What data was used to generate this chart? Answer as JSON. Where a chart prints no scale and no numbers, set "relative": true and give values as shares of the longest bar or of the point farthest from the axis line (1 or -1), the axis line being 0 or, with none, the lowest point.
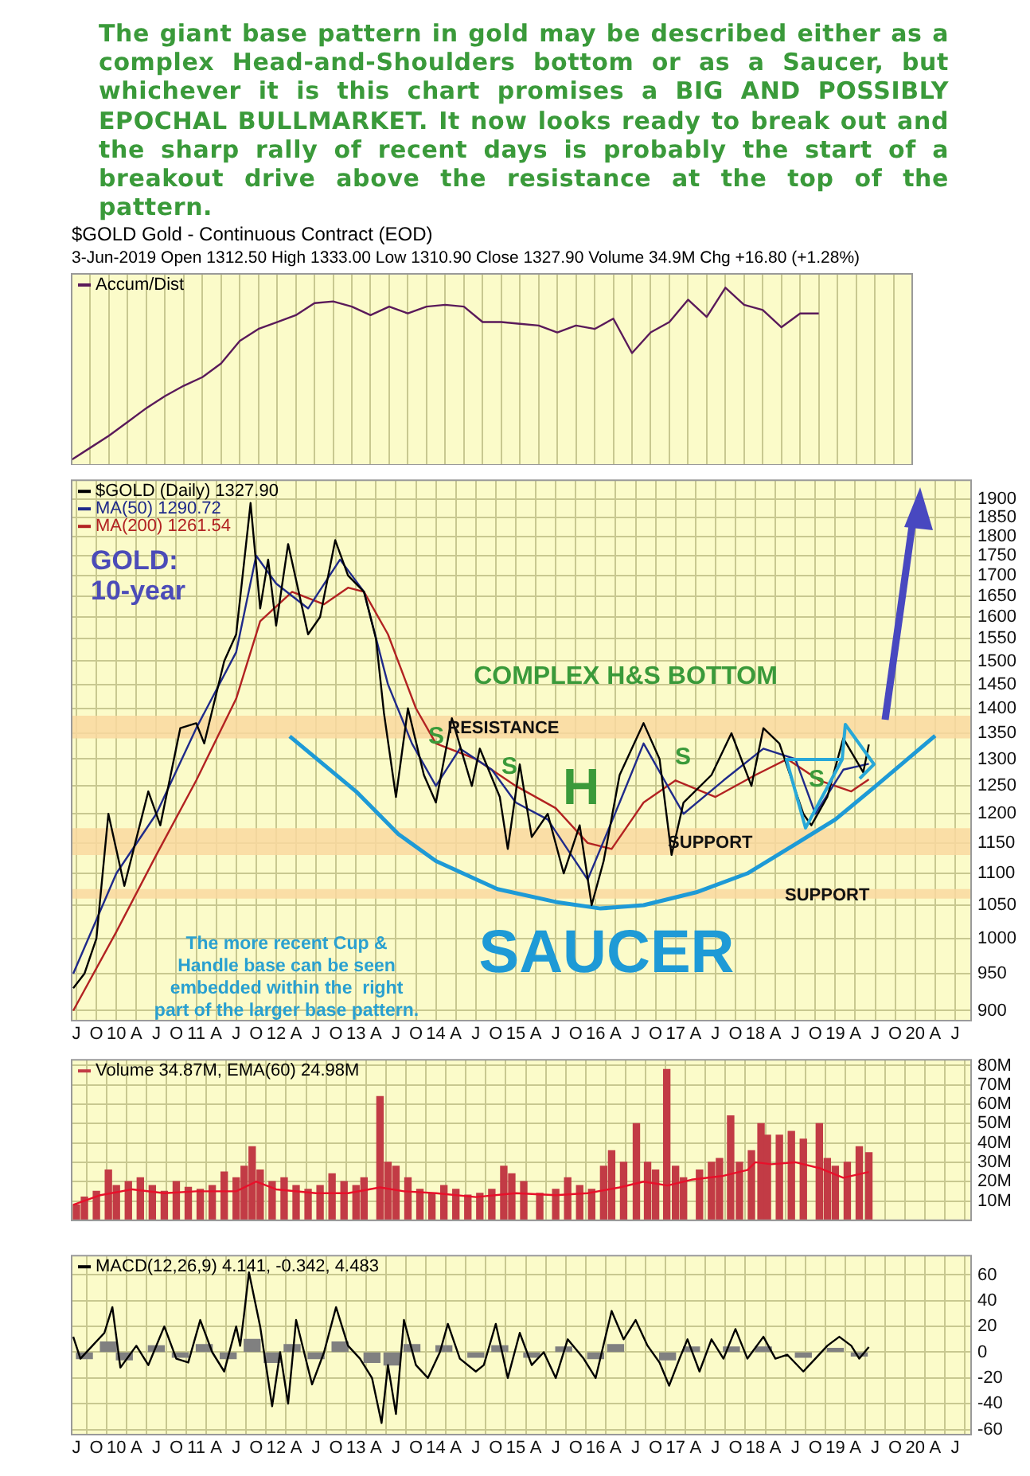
{
  "chart_data": [
    {
      "type": "line",
      "title": "The giant base pattern in gold may be described either as a complex Head-and-Shoulders bottom or as a Saucer, but whichever it is this chart promises a BIG AND POSSIBLY EPOCHAL BULLMARKET. It now looks ready to break out and the sharp rally of recent days is probably the start of a breakout drive above the resistance at the top of the pattern.",
      "subtitle": "$GOLD Gold - Continuous Contract (EOD)",
      "annotations": [
        "3-Jun-2019 Open 1312.50 High 1333.00 Low 1310.90 Close 1327.90 Volume 34.9M Chg +16.80 (+1.28%)"
      ],
      "relative": true,
      "categories": [
        null,
        null,
        null,
        null,
        null,
        null,
        null,
        null,
        null,
        null,
        null,
        null,
        null,
        null,
        null,
        null,
        null,
        null,
        null,
        null,
        null,
        null,
        null,
        null,
        null,
        null,
        null,
        null,
        null,
        null,
        null,
        null,
        null,
        null,
        null,
        null,
        null,
        null,
        null,
        null,
        null,
        null,
        null,
        null,
        null,
        null
      ],
      "tick_labels": false,
      "grid": "x",
      "legend": "top left",
      "series": [
        {
          "name": "Accum/Dist",
          "color": "#5a1a5a",
          "values": [
            0,
            0.07,
            0.14,
            0.22,
            0.3,
            0.37,
            0.43,
            0.48,
            0.56,
            0.69,
            0.76,
            0.8,
            0.84,
            0.91,
            0.92,
            0.89,
            0.84,
            0.89,
            0.85,
            0.89,
            0.9,
            0.89,
            0.8,
            0.8,
            0.79,
            0.78,
            0.74,
            0.78,
            0.76,
            0.82,
            0.62,
            0.74,
            0.8,
            0.93,
            0.83,
            1,
            0.9,
            0.87,
            0.77,
            0.85,
            0.85,
            null,
            null,
            null,
            null,
            null
          ]
        }
      ]
    },
    {
      "type": "line",
      "log": true,
      "xlim": [
        2009.44,
        2020.7
      ],
      "xticks": [
        {
          "value": 2009.5,
          "label": "J"
        },
        {
          "value": 2009.75,
          "label": "O"
        },
        {
          "value": 2010,
          "label": "10"
        },
        {
          "value": 2010.25,
          "label": "A"
        },
        {
          "value": 2010.5,
          "label": "J"
        },
        {
          "value": 2010.75,
          "label": "O"
        },
        {
          "value": 2011,
          "label": "11"
        },
        {
          "value": 2011.25,
          "label": "A"
        },
        {
          "value": 2011.5,
          "label": "J"
        },
        {
          "value": 2011.75,
          "label": "O"
        },
        {
          "value": 2012,
          "label": "12"
        },
        {
          "value": 2012.25,
          "label": "A"
        },
        {
          "value": 2012.5,
          "label": "J"
        },
        {
          "value": 2012.75,
          "label": "O"
        },
        {
          "value": 2013,
          "label": "13"
        },
        {
          "value": 2013.25,
          "label": "A"
        },
        {
          "value": 2013.5,
          "label": "J"
        },
        {
          "value": 2013.75,
          "label": "O"
        },
        {
          "value": 2014,
          "label": "14"
        },
        {
          "value": 2014.25,
          "label": "A"
        },
        {
          "value": 2014.5,
          "label": "J"
        },
        {
          "value": 2014.75,
          "label": "O"
        },
        {
          "value": 2015,
          "label": "15"
        },
        {
          "value": 2015.25,
          "label": "A"
        },
        {
          "value": 2015.5,
          "label": "J"
        },
        {
          "value": 2015.75,
          "label": "O"
        },
        {
          "value": 2016,
          "label": "16"
        },
        {
          "value": 2016.25,
          "label": "A"
        },
        {
          "value": 2016.5,
          "label": "J"
        },
        {
          "value": 2016.75,
          "label": "O"
        },
        {
          "value": 2017,
          "label": "17"
        },
        {
          "value": 2017.25,
          "label": "A"
        },
        {
          "value": 2017.5,
          "label": "J"
        },
        {
          "value": 2017.75,
          "label": "O"
        },
        {
          "value": 2018,
          "label": "18"
        },
        {
          "value": 2018.25,
          "label": "A"
        },
        {
          "value": 2018.5,
          "label": "J"
        },
        {
          "value": 2018.75,
          "label": "O"
        },
        {
          "value": 2019,
          "label": "19"
        },
        {
          "value": 2019.25,
          "label": "A"
        },
        {
          "value": 2019.5,
          "label": "J"
        },
        {
          "value": 2019.75,
          "label": "O"
        },
        {
          "value": 2020,
          "label": "20"
        },
        {
          "value": 2020.25,
          "label": "A"
        },
        {
          "value": 2020.5,
          "label": "J"
        }
      ],
      "ylim": [
        887,
        1954
      ],
      "yticks": [
        900,
        950,
        1000,
        1050,
        1100,
        1150,
        1200,
        1250,
        1300,
        1350,
        1400,
        1450,
        1500,
        1550,
        1600,
        1650,
        1700,
        1750,
        1800,
        1850,
        1900
      ],
      "grid": true,
      "legend": "top left",
      "bands": [
        {
          "axis": "y",
          "from": 1340,
          "to": 1385,
          "label": "RESISTANCE",
          "color": "#f9d8a0"
        },
        {
          "axis": "y",
          "from": 1130,
          "to": 1175,
          "label": "SUPPORT",
          "color": "#f9d8a0"
        },
        {
          "axis": "y",
          "from": 1060,
          "to": 1075,
          "label": "SUPPORT",
          "color": "#f9d8a0"
        }
      ],
      "annotations": [
        "GOLD:\n10-year",
        "The more recent Cup &\nHandle base can be seen\nembedded within the  right\npart of the larger base pattern.",
        "S",
        "S",
        "H",
        "S",
        "S",
        "COMPLEX H&S BOTTOM",
        "SAUCER"
      ],
      "series": [
        {
          "name": "$GOLD (Daily) 1327.90",
          "color": "#000000",
          "x": [
            2009.46,
            2009.6,
            2009.75,
            2009.9,
            2010.1,
            2010.4,
            2010.55,
            2010.8,
            2011.0,
            2011.1,
            2011.35,
            2011.5,
            2011.68,
            2011.8,
            2011.9,
            2012.0,
            2012.15,
            2012.4,
            2012.55,
            2012.74,
            2012.9,
            2013.1,
            2013.25,
            2013.35,
            2013.5,
            2013.65,
            2013.85,
            2014.0,
            2014.2,
            2014.45,
            2014.55,
            2014.8,
            2014.9,
            2015.05,
            2015.2,
            2015.4,
            2015.6,
            2015.8,
            2015.95,
            2016.1,
            2016.3,
            2016.6,
            2016.8,
            2016.95,
            2017.1,
            2017.45,
            2017.7,
            2017.95,
            2018.1,
            2018.3,
            2018.6,
            2018.7,
            2018.9,
            2019.1,
            2019.35,
            2019.42
          ],
          "values": [
            930,
            950,
            1000,
            1200,
            1080,
            1240,
            1180,
            1360,
            1370,
            1330,
            1500,
            1560,
            1890,
            1620,
            1740,
            1580,
            1780,
            1560,
            1600,
            1790,
            1700,
            1660,
            1550,
            1390,
            1230,
            1400,
            1270,
            1220,
            1380,
            1250,
            1320,
            1230,
            1140,
            1290,
            1160,
            1200,
            1100,
            1180,
            1050,
            1120,
            1270,
            1370,
            1300,
            1130,
            1220,
            1270,
            1350,
            1250,
            1360,
            1330,
            1200,
            1180,
            1230,
            1340,
            1275,
            1328
          ]
        },
        {
          "name": "MA(50) 1290.72",
          "color": "#1f2a8a",
          "x": [
            2009.46,
            2010.0,
            2010.5,
            2011.0,
            2011.5,
            2011.75,
            2012.0,
            2012.4,
            2012.8,
            2013.1,
            2013.4,
            2013.7,
            2014.0,
            2014.3,
            2014.7,
            2015.0,
            2015.4,
            2015.9,
            2016.3,
            2016.6,
            2016.9,
            2017.1,
            2017.6,
            2018.1,
            2018.5,
            2018.75,
            2019.1,
            2019.42
          ],
          "values": [
            950,
            1100,
            1200,
            1360,
            1520,
            1750,
            1680,
            1620,
            1740,
            1660,
            1450,
            1330,
            1250,
            1320,
            1280,
            1220,
            1190,
            1090,
            1220,
            1330,
            1250,
            1200,
            1260,
            1320,
            1300,
            1200,
            1280,
            1291
          ]
        },
        {
          "name": "MA(200) 1261.54",
          "color": "#b22222",
          "x": [
            2009.46,
            2010.0,
            2010.5,
            2011.0,
            2011.5,
            2011.8,
            2012.2,
            2012.6,
            2012.9,
            2013.1,
            2013.4,
            2013.75,
            2014.0,
            2014.5,
            2015.0,
            2015.5,
            2015.9,
            2016.2,
            2016.6,
            2017.0,
            2017.5,
            2018.0,
            2018.4,
            2018.8,
            2019.2,
            2019.42
          ],
          "values": [
            900,
            1010,
            1130,
            1260,
            1420,
            1590,
            1660,
            1630,
            1670,
            1660,
            1560,
            1400,
            1330,
            1300,
            1250,
            1210,
            1150,
            1140,
            1220,
            1260,
            1230,
            1270,
            1300,
            1260,
            1240,
            1262
          ]
        },
        {
          "color": "#1e9ad6",
          "x": [
            2012.17,
            2013.0,
            2013.53,
            2014.0,
            2014.77,
            2015.5,
            2016.06,
            2016.6,
            2017.26,
            2017.9,
            2018.5,
            2019.0,
            2019.5,
            2020.25
          ],
          "values": [
            1344,
            1240,
            1165,
            1120,
            1075,
            1055,
            1045,
            1050,
            1070,
            1100,
            1148,
            1190,
            1249,
            1345
          ]
        }
      ]
    },
    {
      "type": "bar",
      "xlim": [
        2009.44,
        2020.7
      ],
      "xticks": [
        {
          "value": 2009.5,
          "label": null
        },
        {
          "value": 2009.75,
          "label": null
        },
        {
          "value": 2010,
          "label": null
        },
        {
          "value": 2010.25,
          "label": null
        },
        {
          "value": 2010.5,
          "label": null
        },
        {
          "value": 2010.75,
          "label": null
        },
        {
          "value": 2011,
          "label": null
        },
        {
          "value": 2011.25,
          "label": null
        },
        {
          "value": 2011.5,
          "label": null
        },
        {
          "value": 2011.75,
          "label": null
        },
        {
          "value": 2012,
          "label": null
        },
        {
          "value": 2012.25,
          "label": null
        },
        {
          "value": 2012.5,
          "label": null
        },
        {
          "value": 2012.75,
          "label": null
        },
        {
          "value": 2013,
          "label": null
        },
        {
          "value": 2013.25,
          "label": null
        },
        {
          "value": 2013.5,
          "label": null
        },
        {
          "value": 2013.75,
          "label": null
        },
        {
          "value": 2014,
          "label": null
        },
        {
          "value": 2014.25,
          "label": null
        },
        {
          "value": 2014.5,
          "label": null
        },
        {
          "value": 2014.75,
          "label": null
        },
        {
          "value": 2015,
          "label": null
        },
        {
          "value": 2015.25,
          "label": null
        },
        {
          "value": 2015.5,
          "label": null
        },
        {
          "value": 2015.75,
          "label": null
        },
        {
          "value": 2016,
          "label": null
        },
        {
          "value": 2016.25,
          "label": null
        },
        {
          "value": 2016.5,
          "label": null
        },
        {
          "value": 2016.75,
          "label": null
        },
        {
          "value": 2017,
          "label": null
        },
        {
          "value": 2017.25,
          "label": null
        },
        {
          "value": 2017.5,
          "label": null
        },
        {
          "value": 2017.75,
          "label": null
        },
        {
          "value": 2018,
          "label": null
        },
        {
          "value": 2018.25,
          "label": null
        },
        {
          "value": 2018.5,
          "label": null
        },
        {
          "value": 2018.75,
          "label": null
        },
        {
          "value": 2019,
          "label": null
        },
        {
          "value": 2019.25,
          "label": null
        },
        {
          "value": 2019.5,
          "label": null
        },
        {
          "value": 2019.75,
          "label": null
        },
        {
          "value": 2020,
          "label": null
        },
        {
          "value": 2020.25,
          "label": null
        },
        {
          "value": 2020.5,
          "label": null
        }
      ],
      "ylim": [
        0,
        83
      ],
      "yticks": [
        {
          "value": 10,
          "label": "10M"
        },
        {
          "value": 20,
          "label": "20M"
        },
        {
          "value": 30,
          "label": "30M"
        },
        {
          "value": 40,
          "label": "40M"
        },
        {
          "value": 50,
          "label": "50M"
        },
        {
          "value": 60,
          "label": "60M"
        },
        {
          "value": 70,
          "label": "70M"
        },
        {
          "value": 80,
          "label": "80M"
        }
      ],
      "tick_labels": "y",
      "grid": true,
      "legend": "top left",
      "series": [
        {
          "name": "Volume 34.87M, EMA(60) 24.98M",
          "color": "#c23b45",
          "x": [
            2009.5,
            2009.6,
            2009.75,
            2009.9,
            2010.0,
            2010.15,
            2010.3,
            2010.45,
            2010.6,
            2010.75,
            2010.9,
            2011.05,
            2011.2,
            2011.35,
            2011.5,
            2011.6,
            2011.7,
            2011.8,
            2011.95,
            2012.1,
            2012.25,
            2012.4,
            2012.55,
            2012.7,
            2012.85,
            2013.0,
            2013.1,
            2013.3,
            2013.4,
            2013.5,
            2013.65,
            2013.8,
            2013.95,
            2014.1,
            2014.25,
            2014.4,
            2014.55,
            2014.7,
            2014.85,
            2014.95,
            2015.1,
            2015.3,
            2015.5,
            2015.65,
            2015.8,
            2015.95,
            2016.1,
            2016.2,
            2016.35,
            2016.51,
            2016.65,
            2016.75,
            2016.89,
            2017.0,
            2017.1,
            2017.3,
            2017.45,
            2017.55,
            2017.69,
            2017.8,
            2017.95,
            2018.07,
            2018.15,
            2018.3,
            2018.45,
            2018.6,
            2018.8,
            2018.9,
            2019.0,
            2019.15,
            2019.3,
            2019.42
          ],
          "values": [
            8,
            12,
            15,
            26,
            18,
            20,
            22,
            18,
            15,
            20,
            17,
            16,
            18,
            25,
            22,
            28,
            38,
            26,
            20,
            22,
            18,
            16,
            18,
            24,
            20,
            18,
            22,
            64,
            30,
            28,
            22,
            16,
            14,
            18,
            16,
            13,
            14,
            16,
            28,
            24,
            20,
            14,
            16,
            22,
            18,
            16,
            28,
            36,
            30,
            50,
            30,
            26,
            78,
            28,
            22,
            26,
            30,
            32,
            54,
            30,
            36,
            50,
            44,
            44,
            46,
            42,
            50,
            32,
            28,
            30,
            38,
            35
          ]
        },
        {
          "type": "line",
          "color": "#e8102a",
          "x": [
            2009.46,
            2009.8,
            2010.2,
            2010.6,
            2011.0,
            2011.5,
            2011.75,
            2012.0,
            2012.5,
            2012.9,
            2013.3,
            2013.6,
            2014.0,
            2014.5,
            2015.0,
            2015.5,
            2015.9,
            2016.3,
            2016.6,
            2016.9,
            2017.2,
            2017.6,
            2017.9,
            2018.0,
            2018.2,
            2018.5,
            2018.8,
            2019.1,
            2019.42
          ],
          "values": [
            8,
            13,
            16,
            14,
            15,
            15,
            20,
            16,
            14,
            14,
            17,
            15,
            14,
            12,
            14,
            13,
            14,
            17,
            20,
            18,
            21,
            23,
            26,
            30,
            29,
            30,
            27,
            22,
            25
          ]
        }
      ]
    },
    {
      "type": "line",
      "xlim": [
        2009.44,
        2020.7
      ],
      "xticks": [
        {
          "value": 2009.5,
          "label": "J"
        },
        {
          "value": 2009.75,
          "label": "O"
        },
        {
          "value": 2010,
          "label": "10"
        },
        {
          "value": 2010.25,
          "label": "A"
        },
        {
          "value": 2010.5,
          "label": "J"
        },
        {
          "value": 2010.75,
          "label": "O"
        },
        {
          "value": 2011,
          "label": "11"
        },
        {
          "value": 2011.25,
          "label": "A"
        },
        {
          "value": 2011.5,
          "label": "J"
        },
        {
          "value": 2011.75,
          "label": "O"
        },
        {
          "value": 2012,
          "label": "12"
        },
        {
          "value": 2012.25,
          "label": "A"
        },
        {
          "value": 2012.5,
          "label": "J"
        },
        {
          "value": 2012.75,
          "label": "O"
        },
        {
          "value": 2013,
          "label": "13"
        },
        {
          "value": 2013.25,
          "label": "A"
        },
        {
          "value": 2013.5,
          "label": "J"
        },
        {
          "value": 2013.75,
          "label": "O"
        },
        {
          "value": 2014,
          "label": "14"
        },
        {
          "value": 2014.25,
          "label": "A"
        },
        {
          "value": 2014.5,
          "label": "J"
        },
        {
          "value": 2014.75,
          "label": "O"
        },
        {
          "value": 2015,
          "label": "15"
        },
        {
          "value": 2015.25,
          "label": "A"
        },
        {
          "value": 2015.5,
          "label": "J"
        },
        {
          "value": 2015.75,
          "label": "O"
        },
        {
          "value": 2016,
          "label": "16"
        },
        {
          "value": 2016.25,
          "label": "A"
        },
        {
          "value": 2016.5,
          "label": "J"
        },
        {
          "value": 2016.75,
          "label": "O"
        },
        {
          "value": 2017,
          "label": "17"
        },
        {
          "value": 2017.25,
          "label": "A"
        },
        {
          "value": 2017.5,
          "label": "J"
        },
        {
          "value": 2017.75,
          "label": "O"
        },
        {
          "value": 2018,
          "label": "18"
        },
        {
          "value": 2018.25,
          "label": "A"
        },
        {
          "value": 2018.5,
          "label": "J"
        },
        {
          "value": 2018.75,
          "label": "O"
        },
        {
          "value": 2019,
          "label": "19"
        },
        {
          "value": 2019.25,
          "label": "A"
        },
        {
          "value": 2019.5,
          "label": "J"
        },
        {
          "value": 2019.75,
          "label": "O"
        },
        {
          "value": 2020,
          "label": "20"
        },
        {
          "value": 2020.25,
          "label": "A"
        },
        {
          "value": 2020.5,
          "label": "J"
        }
      ],
      "ylim": [
        -64,
        75
      ],
      "yticks": [
        -60,
        -40,
        -20,
        0,
        20,
        40,
        60
      ],
      "grid": true,
      "legend": "top left",
      "series": [
        {
          "name": "MACD(12,26,9) 4.141, -0.342, 4.483",
          "color": "#000000",
          "x": [
            2009.46,
            2009.55,
            2009.7,
            2009.85,
            2009.95,
            2010.05,
            2010.25,
            2010.4,
            2010.6,
            2010.75,
            2010.9,
            2011.05,
            2011.2,
            2011.35,
            2011.5,
            2011.55,
            2011.6,
            2011.66,
            2011.8,
            2011.95,
            2012.05,
            2012.15,
            2012.25,
            2012.45,
            2012.6,
            2012.75,
            2012.9,
            2013.05,
            2013.2,
            2013.32,
            2013.4,
            2013.5,
            2013.6,
            2013.75,
            2013.9,
            2014.05,
            2014.15,
            2014.3,
            2014.5,
            2014.6,
            2014.75,
            2014.9,
            2015.05,
            2015.2,
            2015.35,
            2015.5,
            2015.65,
            2015.85,
            2016.0,
            2016.2,
            2016.35,
            2016.5,
            2016.65,
            2016.8,
            2016.92,
            2017.05,
            2017.15,
            2017.3,
            2017.45,
            2017.6,
            2017.75,
            2017.9,
            2018.1,
            2018.25,
            2018.4,
            2018.6,
            2018.75,
            2018.9,
            2019.05,
            2019.2,
            2019.3,
            2019.42
          ],
          "values": [
            12,
            -5,
            5,
            15,
            35,
            -12,
            5,
            -10,
            20,
            -5,
            -8,
            25,
            0,
            -15,
            20,
            5,
            30,
            62,
            20,
            -42,
            0,
            -40,
            25,
            -25,
            0,
            35,
            5,
            -5,
            -20,
            -55,
            -10,
            -48,
            25,
            -10,
            -20,
            0,
            22,
            -5,
            -15,
            -10,
            22,
            -20,
            15,
            -10,
            0,
            -20,
            10,
            -5,
            -20,
            32,
            10,
            25,
            5,
            -8,
            -26,
            -5,
            10,
            -15,
            10,
            -5,
            18,
            -5,
            12,
            -5,
            -2,
            -15,
            -5,
            5,
            12,
            5,
            -5,
            4
          ]
        },
        {
          "type": "bar",
          "color": "#808080",
          "x": [
            2009.6,
            2009.9,
            2010.1,
            2010.5,
            2010.8,
            2011.1,
            2011.4,
            2011.7,
            2011.95,
            2012.2,
            2012.5,
            2012.8,
            2013.2,
            2013.45,
            2013.7,
            2014.1,
            2014.5,
            2014.8,
            2015.2,
            2015.6,
            2016.0,
            2016.25,
            2016.9,
            2017.2,
            2017.7,
            2018.1,
            2018.6,
            2019.0,
            2019.3
          ],
          "values": [
            -5,
            8,
            -6,
            5,
            -4,
            6,
            -5,
            10,
            -8,
            6,
            -5,
            8,
            -8,
            -10,
            6,
            5,
            -4,
            5,
            -4,
            4,
            -5,
            6,
            -6,
            4,
            4,
            4,
            -4,
            3,
            -3
          ]
        }
      ]
    }
  ]
}
